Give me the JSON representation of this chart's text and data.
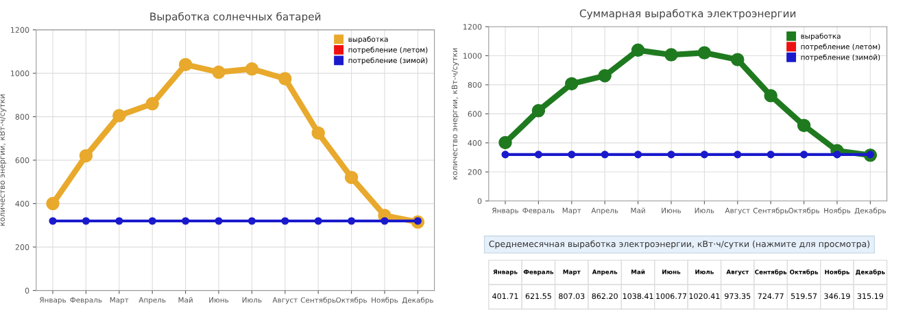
{
  "chart_data": [
    {
      "type": "line",
      "title": "Выработка солнечных батарей",
      "ylabel": "количество энергии, кВт-ч/сутки",
      "categories": [
        "Январь",
        "Февраль",
        "Март",
        "Апрель",
        "Май",
        "Июнь",
        "Июль",
        "Август",
        "Сентябрь",
        "Октябрь",
        "Ноябрь",
        "Декабрь"
      ],
      "series": [
        {
          "name": "выработка",
          "color": "#e8a92c",
          "values": [
            400,
            620,
            805,
            860,
            1040,
            1005,
            1020,
            975,
            725,
            520,
            345,
            315
          ]
        },
        {
          "name": "потребление (летом)",
          "color": "#ee1111",
          "values": [
            null,
            null,
            null,
            null,
            null,
            null,
            null,
            null,
            null,
            null,
            null,
            null
          ]
        },
        {
          "name": "потребление (зимой)",
          "color": "#1a1acc",
          "values": [
            320,
            320,
            320,
            320,
            320,
            320,
            320,
            320,
            320,
            320,
            320,
            320
          ]
        }
      ],
      "ylim": [
        0,
        1200
      ],
      "yticks": [
        0,
        200,
        400,
        600,
        800,
        1000,
        1200
      ],
      "grid": true,
      "legend": "top right",
      "marker": "circle"
    },
    {
      "type": "line",
      "title": "Суммарная выработка электроэнергии",
      "ylabel": "количество энергии, кВт-ч/сутки",
      "categories": [
        "Январь",
        "Февраль",
        "Март",
        "Апрель",
        "Май",
        "Июнь",
        "Июль",
        "Август",
        "Сентябрь",
        "Октябрь",
        "Ноябрь",
        "Декабрь"
      ],
      "series": [
        {
          "name": "выработка",
          "color": "#1f7a1f",
          "values": [
            401.71,
            621.55,
            807.03,
            862.2,
            1038.41,
            1006.77,
            1020.41,
            973.35,
            724.77,
            519.57,
            346.19,
            315.19
          ],
          "value_labels": [
            "401.71",
            "621.55",
            "807.03",
            "862.20",
            "1038.41",
            "1006.77",
            "1020.41",
            "973.35",
            "724.77",
            "519.57",
            "346.19",
            "315.19"
          ]
        },
        {
          "name": "потребление (летом)",
          "color": "#ee1111",
          "values": [
            null,
            null,
            null,
            null,
            null,
            null,
            null,
            null,
            null,
            null,
            null,
            null
          ]
        },
        {
          "name": "потребление (зимой)",
          "color": "#1a1acc",
          "values": [
            320,
            320,
            320,
            320,
            320,
            320,
            320,
            320,
            320,
            320,
            320,
            320
          ]
        }
      ],
      "ylim": [
        0,
        1200
      ],
      "yticks": [
        0,
        200,
        400,
        600,
        800,
        1000,
        1200
      ],
      "grid": true,
      "legend": "top right",
      "marker": "circle",
      "annotations": [
        "Среднемесячная выработка электроэнергии, кВт·ч/сутки (нажмите для просмотра)"
      ]
    }
  ]
}
